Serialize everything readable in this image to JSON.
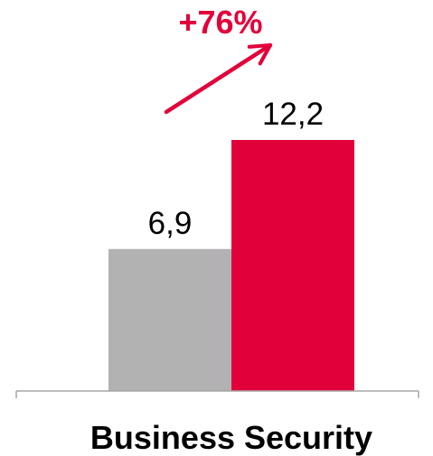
{
  "chart_data": {
    "type": "bar",
    "categories": [
      "Business Security"
    ],
    "series": [
      {
        "values": [
          6.9
        ],
        "color": "#b2b2b2"
      },
      {
        "values": [
          12.2
        ],
        "color": "#e2003a"
      }
    ],
    "value_labels": [
      "6,9",
      "12,2"
    ],
    "ylim": [
      0,
      12.2
    ],
    "grid": false,
    "annotation": {
      "text": "+76%",
      "color": "#e2003a",
      "icon": "arrow-up-right-icon"
    }
  }
}
